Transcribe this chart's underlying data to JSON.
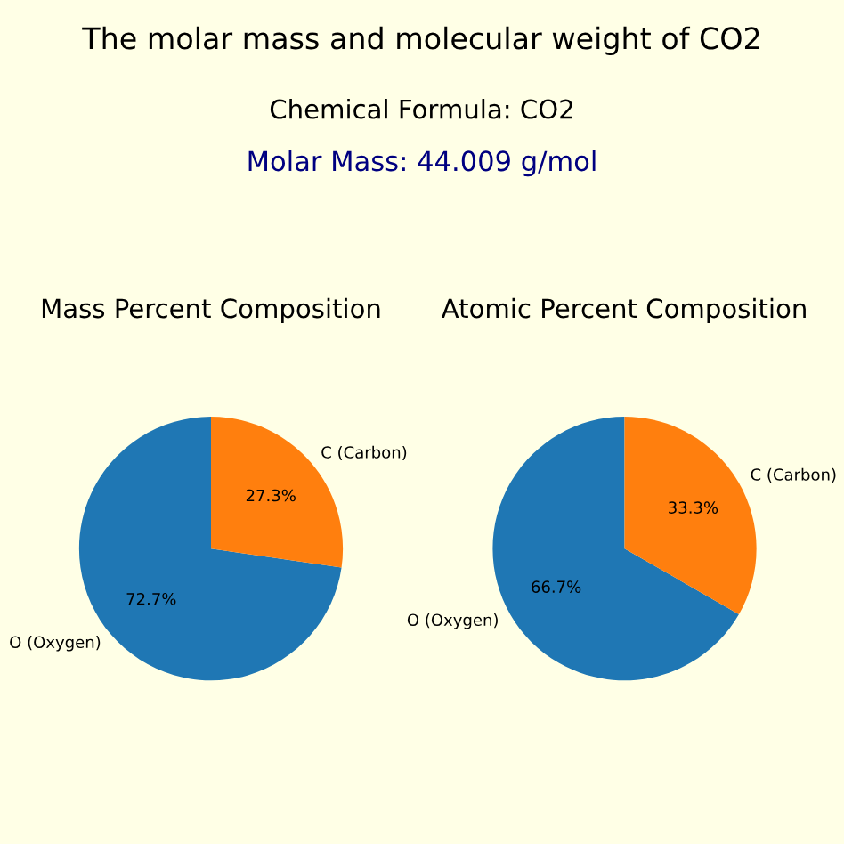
{
  "chart_data": [
    {
      "type": "other",
      "title": "The molar mass and molecular weight of CO2",
      "subtitle": "Chemical Formula: CO2",
      "annotations": [
        "Molar Mass: 44.009 g/mol"
      ]
    },
    {
      "type": "pie",
      "title": "Mass Percent Composition",
      "categories": [
        "O (Oxygen)",
        "C (Carbon)"
      ],
      "values": [
        72.7,
        27.3
      ],
      "colors": [
        "#1f77b4",
        "#ff7f0e"
      ],
      "value_labels": [
        "72.7%",
        "27.3%"
      ]
    },
    {
      "type": "pie",
      "title": "Atomic Percent Composition",
      "categories": [
        "O (Oxygen)",
        "C (Carbon)"
      ],
      "values": [
        66.7,
        33.3
      ],
      "colors": [
        "#1f77b4",
        "#ff7f0e"
      ],
      "value_labels": [
        "66.7%",
        "33.3%"
      ]
    }
  ]
}
